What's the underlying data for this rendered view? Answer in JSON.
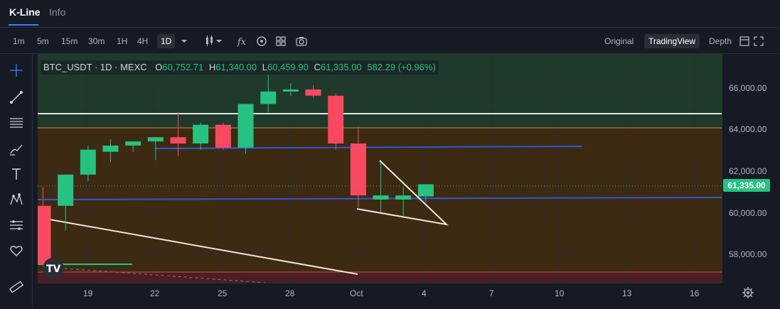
{
  "tabs": [
    {
      "label": "K-Line",
      "active": true
    },
    {
      "label": "Info",
      "active": false
    }
  ],
  "intervals": [
    "1m",
    "5m",
    "15m",
    "30m",
    "1H",
    "4H",
    "1D"
  ],
  "active_interval": "1D",
  "view_options": [
    "Original",
    "TradingView",
    "Depth"
  ],
  "active_view": "TradingView",
  "legend": {
    "symbol": "BTC_USDT · 1D · MEXC",
    "open_key": "O",
    "open": "60,752.71",
    "high_key": "H",
    "high": "61,340.00",
    "low_key": "L",
    "low": "60,459.90",
    "close_key": "C",
    "close": "61,335.00",
    "change": "582.29 (+0.96%)"
  },
  "price_axis_labels": [
    "66,000.00",
    "64,000.00",
    "62,000.00",
    "60,000.00",
    "58,000.00"
  ],
  "current_price": "61,335.00",
  "time_axis_labels": [
    "19",
    "22",
    "25",
    "28",
    "Oct",
    "4",
    "7",
    "10",
    "13",
    "16"
  ],
  "colors": {
    "up": "#26c281",
    "down": "#f84960",
    "accent": "#3d7eff",
    "zone_green": "#1f3a2a",
    "zone_brown": "#3d2a12",
    "zone_red": "#4a1e24",
    "trend_blue": "#2f57d8",
    "support_white": "#dfe6e0",
    "orange_line": "#d48a2a",
    "triangle_line": "#f0e6d8"
  },
  "icons": {
    "crosshair": "crosshair-icon",
    "trendline": "trendline-icon",
    "fib": "fib-icon",
    "brush": "brush-icon",
    "text": "text-icon",
    "pattern": "pattern-icon",
    "measure": "measure-icon",
    "favorite": "heart-icon",
    "ruler": "ruler-icon",
    "settings": "gear-icon"
  },
  "chart_data": {
    "type": "candlestick",
    "x_labels": [
      "19",
      "22",
      "25",
      "28",
      "Oct",
      "4",
      "7",
      "10",
      "13",
      "16"
    ],
    "ylim": [
      57000,
      67000
    ],
    "candles": [
      {
        "o": 60300,
        "h": 61200,
        "l": 57200,
        "c": 57500
      },
      {
        "o": 60300,
        "h": 61800,
        "l": 59100,
        "c": 61800
      },
      {
        "o": 61800,
        "h": 63200,
        "l": 61500,
        "c": 63000
      },
      {
        "o": 62900,
        "h": 63500,
        "l": 62400,
        "c": 63200
      },
      {
        "o": 63200,
        "h": 63400,
        "l": 62900,
        "c": 63400
      },
      {
        "o": 63400,
        "h": 63600,
        "l": 62500,
        "c": 63600
      },
      {
        "o": 63600,
        "h": 64800,
        "l": 62700,
        "c": 63300
      },
      {
        "o": 63300,
        "h": 64300,
        "l": 63000,
        "c": 64200
      },
      {
        "o": 64200,
        "h": 64300,
        "l": 63000,
        "c": 63100
      },
      {
        "o": 63100,
        "h": 65200,
        "l": 62800,
        "c": 65200
      },
      {
        "o": 65200,
        "h": 66600,
        "l": 64800,
        "c": 65800
      },
      {
        "o": 65800,
        "h": 66200,
        "l": 65600,
        "c": 65900
      },
      {
        "o": 65900,
        "h": 66100,
        "l": 65500,
        "c": 65600
      },
      {
        "o": 65600,
        "h": 65700,
        "l": 63000,
        "c": 63300
      },
      {
        "o": 63300,
        "h": 64100,
        "l": 60200,
        "c": 60800
      },
      {
        "o": 60600,
        "h": 62500,
        "l": 59900,
        "c": 60800
      },
      {
        "o": 60600,
        "h": 61200,
        "l": 59800,
        "c": 60800
      },
      {
        "o": 60750,
        "h": 61340,
        "l": 60460,
        "c": 61335
      }
    ]
  }
}
